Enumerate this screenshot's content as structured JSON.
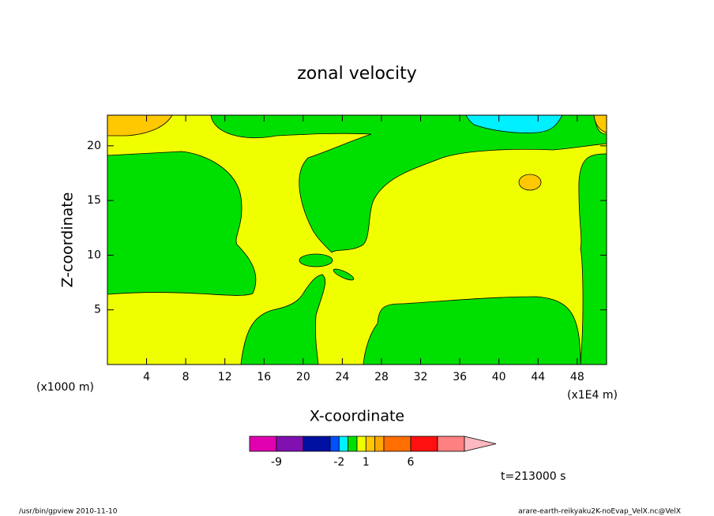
{
  "chart_data": {
    "type": "contour",
    "title": "zonal velocity",
    "xlabel": "X-coordinate",
    "ylabel": "Z-coordinate",
    "x_unit_left": "(x1000 m)",
    "x_unit_right": "(x1E4 m)",
    "xlim": [
      0,
      51
    ],
    "xticks": [
      4,
      8,
      12,
      16,
      20,
      24,
      28,
      32,
      36,
      40,
      44,
      48
    ],
    "ylim": [
      0,
      22.8
    ],
    "yticks": [
      5,
      10,
      15,
      20
    ],
    "colorbar": {
      "levels": [
        -12,
        -9,
        -6,
        -3,
        -2,
        -1,
        0,
        1,
        2,
        3,
        6,
        9,
        12
      ],
      "colors": [
        "#e000b0",
        "#8010b0",
        "#0010a0",
        "#0050ff",
        "#00f0ff",
        "#00e000",
        "#f0ff00",
        "#ffc800",
        "#ffa800",
        "#ff6e00",
        "#ff1010",
        "#ff8080"
      ],
      "extend_color": "#ffb8c0",
      "ticks": [
        -9,
        -2,
        1,
        6
      ]
    },
    "annotation": "t=213000 s",
    "footer_left": "/usr/bin/gpview  2010-11-10",
    "footer_right": "arare-earth-reikyaku2K-noEvap_VelX.nc@VelX"
  }
}
